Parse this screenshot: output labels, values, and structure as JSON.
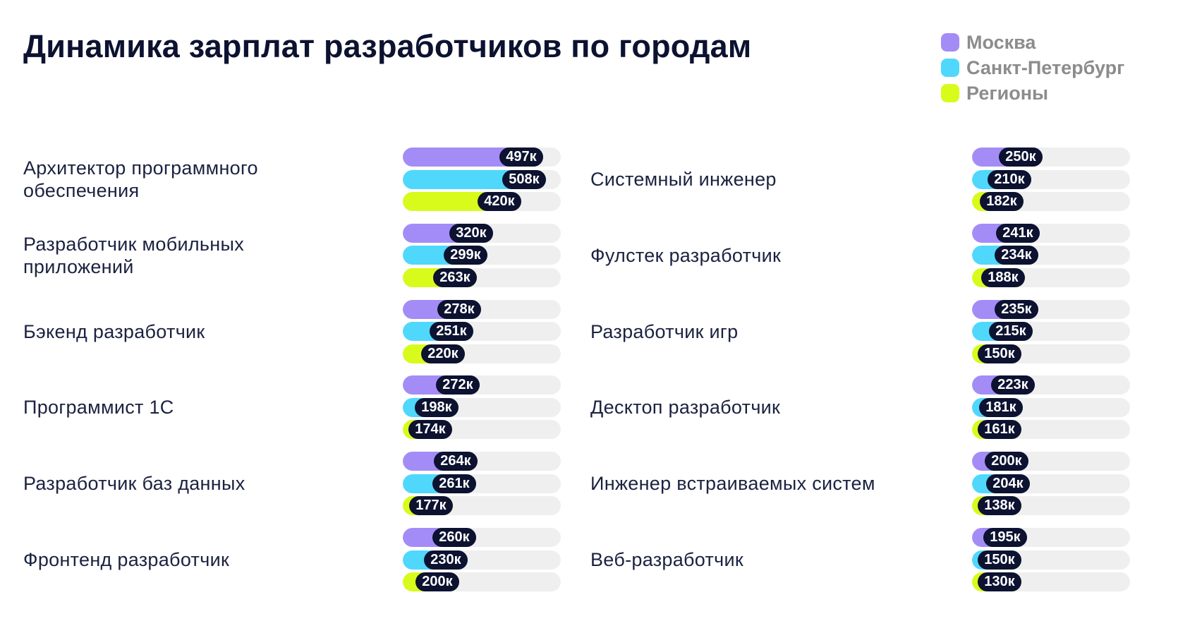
{
  "title": "Динамика зарплат разработчиков по городам",
  "legend": [
    {
      "label": "Москва",
      "color": "#a48cf7"
    },
    {
      "label": "Санкт-Петербург",
      "color": "#4fd8fb"
    },
    {
      "label": "Регионы",
      "color": "#d9fb1c"
    }
  ],
  "value_suffix": "к",
  "chart_data": {
    "type": "bar",
    "orientation": "horizontal",
    "unit": "к",
    "series_names": [
      "Москва",
      "Санкт-Петербург",
      "Регионы"
    ],
    "colors": {
      "Москва": "#a48cf7",
      "Санкт-Петербург": "#4fd8fb",
      "Регионы": "#d9fb1c"
    },
    "columns": [
      {
        "categories": [
          {
            "label": "Архитектор программного обеспечения",
            "values": [
              497,
              508,
              420
            ]
          },
          {
            "label": "Разработчик мобильных приложений",
            "values": [
              320,
              299,
              263
            ]
          },
          {
            "label": "Бэкенд разработчик",
            "values": [
              278,
              251,
              220
            ]
          },
          {
            "label": "Программист 1С",
            "values": [
              272,
              198,
              174
            ]
          },
          {
            "label": "Разработчик баз данных",
            "values": [
              264,
              261,
              177
            ]
          },
          {
            "label": "Фронтенд разработчик",
            "values": [
              260,
              230,
              200
            ]
          }
        ]
      },
      {
        "categories": [
          {
            "label": "Системный инженер",
            "values": [
              250,
              210,
              182
            ]
          },
          {
            "label": "Фулстек разработчик",
            "values": [
              241,
              234,
              188
            ]
          },
          {
            "label": "Разработчик игр",
            "values": [
              235,
              215,
              150
            ]
          },
          {
            "label": "Десктоп разработчик",
            "values": [
              223,
              181,
              161
            ]
          },
          {
            "label": "Инженер встраиваемых систем",
            "values": [
              200,
              204,
              138
            ]
          },
          {
            "label": "Веб-разработчик",
            "values": [
              195,
              150,
              130
            ]
          }
        ]
      }
    ]
  }
}
